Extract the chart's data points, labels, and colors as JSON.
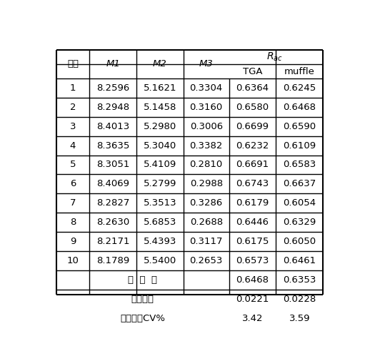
{
  "rows": [
    [
      "1",
      "8.2596",
      "5.1621",
      "0.3304",
      "0.6364",
      "0.6245"
    ],
    [
      "2",
      "8.2948",
      "5.1458",
      "0.3160",
      "0.6580",
      "0.6468"
    ],
    [
      "3",
      "8.4013",
      "5.2980",
      "0.3006",
      "0.6699",
      "0.6590"
    ],
    [
      "4",
      "8.3635",
      "5.3040",
      "0.3382",
      "0.6232",
      "0.6109"
    ],
    [
      "5",
      "8.3051",
      "5.4109",
      "0.2810",
      "0.6691",
      "0.6583"
    ],
    [
      "6",
      "8.4069",
      "5.2799",
      "0.2988",
      "0.6743",
      "0.6637"
    ],
    [
      "7",
      "8.2827",
      "5.3513",
      "0.3286",
      "0.6179",
      "0.6054"
    ],
    [
      "8",
      "8.2630",
      "5.6853",
      "0.2688",
      "0.6446",
      "0.6329"
    ],
    [
      "9",
      "8.2171",
      "5.4393",
      "0.3117",
      "0.6175",
      "0.6050"
    ],
    [
      "10",
      "8.1789",
      "5.5400",
      "0.2653",
      "0.6573",
      "0.6461"
    ]
  ],
  "summary_labels": [
    "平  均  値",
    "标准偏差",
    "变异系数CV%"
  ],
  "summary_tga": [
    "0.6468",
    "0.0221",
    "3.42"
  ],
  "summary_muffle": [
    "0.6353",
    "0.0228",
    "3.59"
  ],
  "header_col1": "序号",
  "header_R": "R",
  "header_R_sub": "ac",
  "header_sub": [
    "TGA",
    "muffle"
  ],
  "col_M": [
    "M",
    "M",
    "M"
  ],
  "col_M_sub": [
    "1",
    "2",
    "3"
  ],
  "bg_color": "#ffffff",
  "line_color": "#000000",
  "text_color": "#000000",
  "font_size": 9.5
}
